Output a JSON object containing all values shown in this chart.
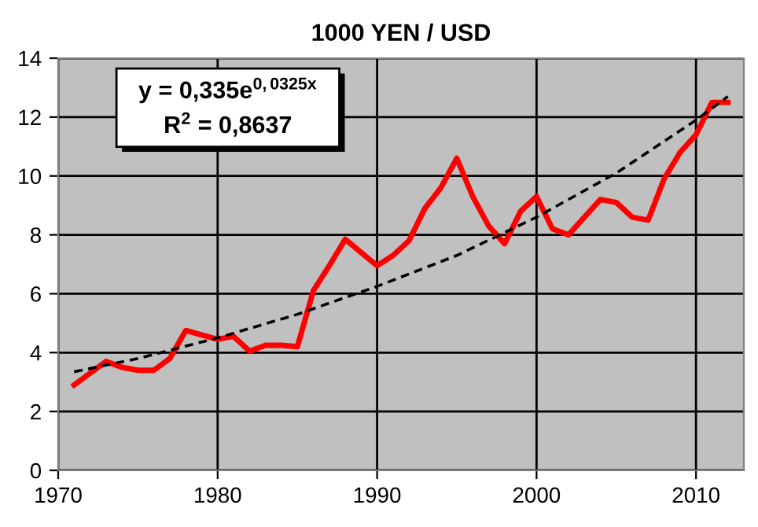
{
  "chart_data": {
    "type": "line",
    "title": "1000 YEN / USD",
    "xlim": [
      1970,
      2013
    ],
    "xticks": [
      1970,
      1980,
      1990,
      2000,
      2010
    ],
    "ylim": [
      0,
      14
    ],
    "yticks": [
      0,
      2,
      4,
      6,
      8,
      10,
      12,
      14
    ],
    "grid": true,
    "legend": false,
    "annotations": [
      "y = 0,335e$^{0,0325x}$",
      "R$^{2}$ = 0,8637"
    ],
    "series": [
      {
        "color": "#ff0000",
        "line_style": "solid",
        "x": [
          1971,
          1972,
          1973,
          1974,
          1975,
          1976,
          1977,
          1978,
          1979,
          1980,
          1981,
          1982,
          1983,
          1984,
          1985,
          1986,
          1987,
          1988,
          1989,
          1990,
          1991,
          1992,
          1993,
          1994,
          1995,
          1996,
          1997,
          1998,
          1999,
          2000,
          2001,
          2002,
          2003,
          2004,
          2005,
          2006,
          2007,
          2008,
          2009,
          2010,
          2011,
          2012
        ],
        "values": [
          2.9,
          3.3,
          3.7,
          3.5,
          3.4,
          3.4,
          3.8,
          4.75,
          4.6,
          4.45,
          4.55,
          4.05,
          4.25,
          4.25,
          4.2,
          6.1,
          6.95,
          7.85,
          7.4,
          6.95,
          7.3,
          7.8,
          8.9,
          9.6,
          10.6,
          9.3,
          8.3,
          7.7,
          8.8,
          9.3,
          8.2,
          8.0,
          8.6,
          9.2,
          9.1,
          8.6,
          8.5,
          9.9,
          10.8,
          11.4,
          12.5,
          12.5
        ]
      },
      {
        "color": "#000000",
        "line_style": "dashed",
        "x": [
          1971,
          1975,
          1980,
          1985,
          1990,
          1995,
          2000,
          2005,
          2010,
          2012
        ],
        "values": [
          3.35,
          3.8,
          4.5,
          5.3,
          6.25,
          7.3,
          8.6,
          10.1,
          11.9,
          12.7
        ]
      }
    ]
  }
}
